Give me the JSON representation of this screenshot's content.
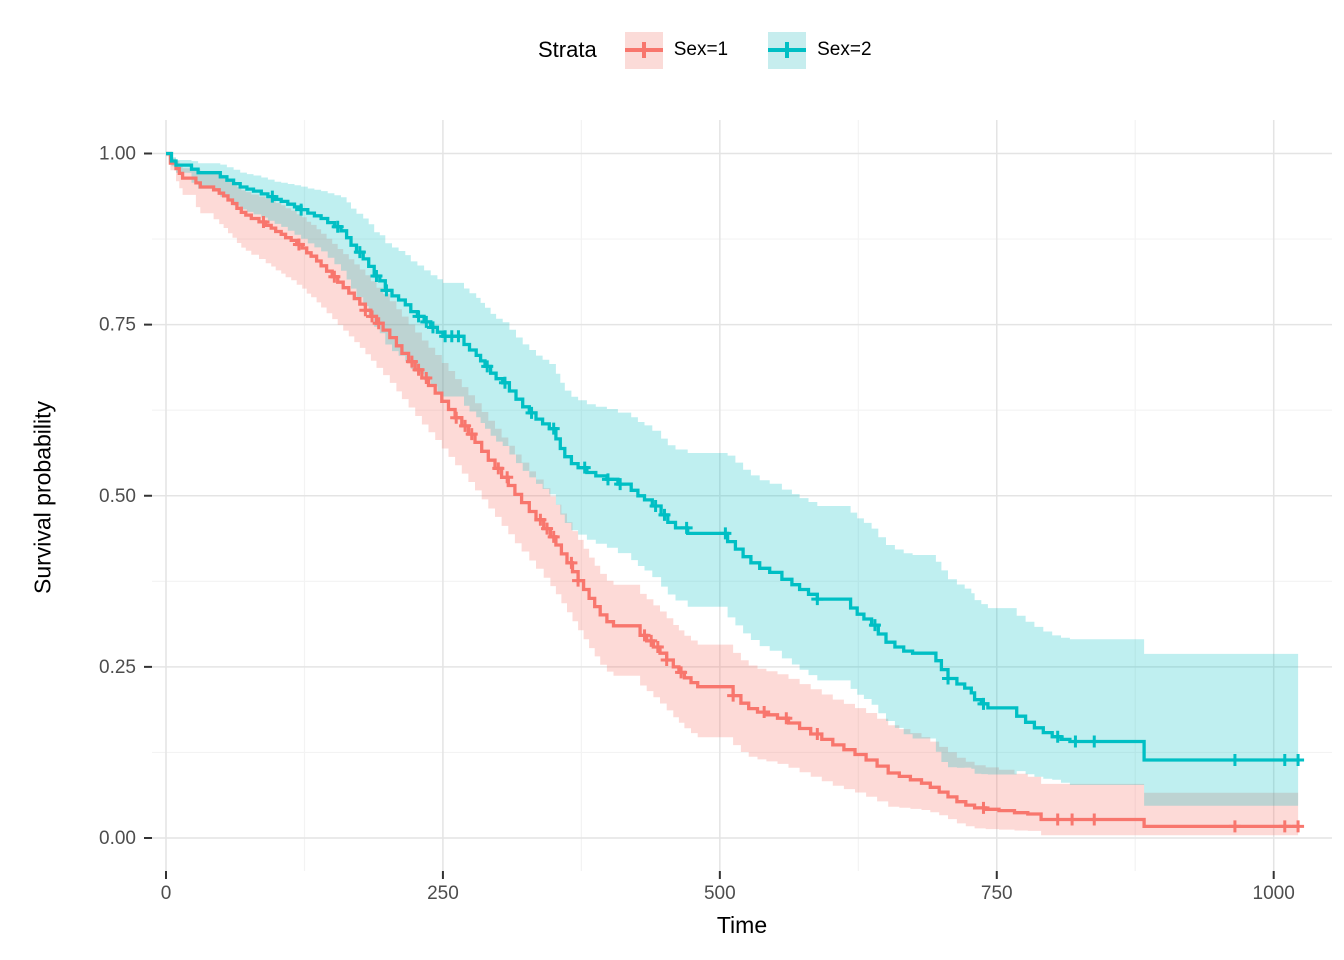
{
  "figure": {
    "background": "#ffffff"
  },
  "legend": {
    "title": "Strata",
    "items": [
      {
        "label": "Sex=1",
        "line_color": "#F8766D",
        "key_fill": "#FBDBD8"
      },
      {
        "label": "Sex=2",
        "line_color": "#00BFC4",
        "key_fill": "#C6EDEE"
      }
    ]
  },
  "axes": {
    "x_label": "Time",
    "y_label": "Survival probability",
    "x_tick_labels": [
      "0",
      "250",
      "500",
      "750",
      "1000"
    ],
    "y_tick_labels": [
      "0.00",
      "0.25",
      "0.50",
      "0.75",
      "1.00"
    ],
    "tick_text_color": "#4D4D4D",
    "tick_mark_color": "#333333",
    "grid_major": "#E4E4E4",
    "grid_minor": "#F3F3F3"
  },
  "chart_data": {
    "type": "line",
    "subtype": "kaplan-meier-step",
    "legend_title": "Strata",
    "xlabel": "Time",
    "ylabel": "Survival probability",
    "xlim": [
      0,
      1053
    ],
    "ylim": [
      0,
      1.05
    ],
    "grid": true,
    "legend_position": "top",
    "x_major": [
      0,
      250,
      500,
      750,
      1000
    ],
    "x_minor": [
      125,
      375,
      625,
      875
    ],
    "y_major": [
      0,
      0.25,
      0.5,
      0.75,
      1.0
    ],
    "y_minor": [
      0.125,
      0.375,
      0.625,
      0.875
    ],
    "end_time": 1022,
    "series": [
      {
        "name": "Sex=1",
        "color": "#F8766D",
        "fill": "rgba(248,118,109,0.27)",
        "steps": [
          [
            0,
            1.0
          ],
          [
            4,
            0.986
          ],
          [
            9,
            0.978
          ],
          [
            12,
            0.971
          ],
          [
            15,
            0.964
          ],
          [
            27,
            0.957
          ],
          [
            31,
            0.951
          ],
          [
            43,
            0.947
          ],
          [
            48,
            0.942
          ],
          [
            52,
            0.938
          ],
          [
            56,
            0.932
          ],
          [
            60,
            0.927
          ],
          [
            64,
            0.92
          ],
          [
            68,
            0.914
          ],
          [
            72,
            0.91
          ],
          [
            77,
            0.905
          ],
          [
            84,
            0.9
          ],
          [
            90,
            0.895
          ],
          [
            95,
            0.891
          ],
          [
            99,
            0.886
          ],
          [
            104,
            0.882
          ],
          [
            108,
            0.877
          ],
          [
            113,
            0.873
          ],
          [
            118,
            0.867
          ],
          [
            123,
            0.862
          ],
          [
            127,
            0.855
          ],
          [
            131,
            0.85
          ],
          [
            136,
            0.843
          ],
          [
            140,
            0.836
          ],
          [
            145,
            0.828
          ],
          [
            150,
            0.82
          ],
          [
            155,
            0.812
          ],
          [
            160,
            0.804
          ],
          [
            165,
            0.796
          ],
          [
            170,
            0.788
          ],
          [
            175,
            0.78
          ],
          [
            180,
            0.771
          ],
          [
            185,
            0.762
          ],
          [
            190,
            0.752
          ],
          [
            196,
            0.742
          ],
          [
            202,
            0.731
          ],
          [
            208,
            0.719
          ],
          [
            213,
            0.708
          ],
          [
            219,
            0.696
          ],
          [
            225,
            0.684
          ],
          [
            231,
            0.672
          ],
          [
            237,
            0.661
          ],
          [
            243,
            0.65
          ],
          [
            249,
            0.638
          ],
          [
            255,
            0.626
          ],
          [
            261,
            0.614
          ],
          [
            267,
            0.602
          ],
          [
            273,
            0.59
          ],
          [
            279,
            0.578
          ],
          [
            285,
            0.565
          ],
          [
            291,
            0.552
          ],
          [
            297,
            0.54
          ],
          [
            303,
            0.527
          ],
          [
            309,
            0.515
          ],
          [
            315,
            0.502
          ],
          [
            321,
            0.49
          ],
          [
            328,
            0.477
          ],
          [
            334,
            0.465
          ],
          [
            341,
            0.452
          ],
          [
            347,
            0.44
          ],
          [
            352,
            0.428
          ],
          [
            357,
            0.415
          ],
          [
            362,
            0.402
          ],
          [
            367,
            0.389
          ],
          [
            372,
            0.376
          ],
          [
            377,
            0.363
          ],
          [
            382,
            0.35
          ],
          [
            387,
            0.338
          ],
          [
            392,
            0.326
          ],
          [
            398,
            0.316
          ],
          [
            404,
            0.31
          ],
          [
            428,
            0.296
          ],
          [
            434,
            0.288
          ],
          [
            440,
            0.279
          ],
          [
            446,
            0.27
          ],
          [
            452,
            0.26
          ],
          [
            458,
            0.25
          ],
          [
            463,
            0.242
          ],
          [
            468,
            0.234
          ],
          [
            474,
            0.227
          ],
          [
            480,
            0.221
          ],
          [
            512,
            0.208
          ],
          [
            519,
            0.197
          ],
          [
            526,
            0.189
          ],
          [
            534,
            0.184
          ],
          [
            542,
            0.18
          ],
          [
            552,
            0.175
          ],
          [
            562,
            0.168
          ],
          [
            572,
            0.16
          ],
          [
            582,
            0.152
          ],
          [
            592,
            0.144
          ],
          [
            602,
            0.136
          ],
          [
            612,
            0.129
          ],
          [
            622,
            0.122
          ],
          [
            632,
            0.114
          ],
          [
            642,
            0.105
          ],
          [
            652,
            0.095
          ],
          [
            662,
            0.09
          ],
          [
            672,
            0.085
          ],
          [
            682,
            0.08
          ],
          [
            690,
            0.074
          ],
          [
            698,
            0.067
          ],
          [
            706,
            0.06
          ],
          [
            714,
            0.053
          ],
          [
            722,
            0.048
          ],
          [
            730,
            0.044
          ],
          [
            740,
            0.042
          ],
          [
            752,
            0.04
          ],
          [
            766,
            0.037
          ],
          [
            778,
            0.035
          ],
          [
            790,
            0.027
          ],
          [
            883,
            0.017
          ]
        ],
        "censor_times": [
          88,
          120,
          152,
          180,
          186,
          192,
          222,
          228,
          235,
          262,
          270,
          276,
          300,
          308,
          338,
          344,
          350,
          366,
          372,
          432,
          438,
          444,
          452,
          465,
          512,
          540,
          560,
          588,
          738,
          805,
          818,
          838,
          965,
          1010,
          1022
        ],
        "ci_width": [
          [
            0,
            0.004,
            0.004
          ],
          [
            10,
            0.012,
            0.02
          ],
          [
            30,
            0.022,
            0.038
          ],
          [
            60,
            0.03,
            0.05
          ],
          [
            100,
            0.042,
            0.057
          ],
          [
            150,
            0.048,
            0.062
          ],
          [
            200,
            0.053,
            0.066
          ],
          [
            250,
            0.056,
            0.069
          ],
          [
            300,
            0.058,
            0.071
          ],
          [
            400,
            0.06,
            0.073
          ],
          [
            500,
            0.062,
            0.074
          ],
          [
            600,
            0.066,
            0.06
          ],
          [
            650,
            0.07,
            0.05
          ],
          [
            700,
            0.066,
            0.033
          ],
          [
            750,
            0.06,
            0.028
          ],
          [
            800,
            0.05,
            0.022
          ],
          [
            880,
            0.049,
            0.013
          ],
          [
            1022,
            0.049,
            0.013
          ]
        ]
      },
      {
        "name": "Sex=2",
        "color": "#00BFC4",
        "fill": "rgba(0,191,196,0.25)",
        "steps": [
          [
            0,
            1.0
          ],
          [
            5,
            0.989
          ],
          [
            9,
            0.983
          ],
          [
            23,
            0.977
          ],
          [
            29,
            0.972
          ],
          [
            49,
            0.966
          ],
          [
            55,
            0.961
          ],
          [
            61,
            0.956
          ],
          [
            67,
            0.951
          ],
          [
            73,
            0.948
          ],
          [
            79,
            0.945
          ],
          [
            86,
            0.941
          ],
          [
            92,
            0.937
          ],
          [
            98,
            0.933
          ],
          [
            104,
            0.93
          ],
          [
            110,
            0.926
          ],
          [
            116,
            0.922
          ],
          [
            122,
            0.918
          ],
          [
            128,
            0.913
          ],
          [
            134,
            0.909
          ],
          [
            140,
            0.905
          ],
          [
            146,
            0.899
          ],
          [
            152,
            0.893
          ],
          [
            158,
            0.887
          ],
          [
            163,
            0.877
          ],
          [
            167,
            0.866
          ],
          [
            172,
            0.856
          ],
          [
            178,
            0.846
          ],
          [
            183,
            0.835
          ],
          [
            188,
            0.821
          ],
          [
            193,
            0.814
          ],
          [
            198,
            0.8
          ],
          [
            204,
            0.792
          ],
          [
            210,
            0.786
          ],
          [
            216,
            0.779
          ],
          [
            221,
            0.769
          ],
          [
            227,
            0.762
          ],
          [
            233,
            0.754
          ],
          [
            239,
            0.746
          ],
          [
            245,
            0.739
          ],
          [
            250,
            0.733
          ],
          [
            269,
            0.721
          ],
          [
            274,
            0.713
          ],
          [
            280,
            0.705
          ],
          [
            284,
            0.697
          ],
          [
            288,
            0.689
          ],
          [
            293,
            0.679
          ],
          [
            298,
            0.671
          ],
          [
            304,
            0.665
          ],
          [
            310,
            0.653
          ],
          [
            316,
            0.641
          ],
          [
            322,
            0.63
          ],
          [
            328,
            0.621
          ],
          [
            334,
            0.612
          ],
          [
            340,
            0.605
          ],
          [
            346,
            0.598
          ],
          [
            352,
            0.583
          ],
          [
            356,
            0.569
          ],
          [
            360,
            0.557
          ],
          [
            366,
            0.547
          ],
          [
            372,
            0.541
          ],
          [
            380,
            0.534
          ],
          [
            388,
            0.529
          ],
          [
            398,
            0.524
          ],
          [
            408,
            0.517
          ],
          [
            420,
            0.508
          ],
          [
            426,
            0.5
          ],
          [
            432,
            0.494
          ],
          [
            439,
            0.485
          ],
          [
            447,
            0.472
          ],
          [
            453,
            0.461
          ],
          [
            460,
            0.453
          ],
          [
            471,
            0.445
          ],
          [
            507,
            0.433
          ],
          [
            514,
            0.422
          ],
          [
            521,
            0.411
          ],
          [
            528,
            0.402
          ],
          [
            536,
            0.394
          ],
          [
            545,
            0.388
          ],
          [
            556,
            0.378
          ],
          [
            565,
            0.37
          ],
          [
            572,
            0.363
          ],
          [
            580,
            0.356
          ],
          [
            588,
            0.349
          ],
          [
            618,
            0.336
          ],
          [
            624,
            0.327
          ],
          [
            630,
            0.32
          ],
          [
            637,
            0.311
          ],
          [
            643,
            0.298
          ],
          [
            650,
            0.286
          ],
          [
            658,
            0.279
          ],
          [
            666,
            0.273
          ],
          [
            674,
            0.27
          ],
          [
            695,
            0.259
          ],
          [
            700,
            0.246
          ],
          [
            706,
            0.233
          ],
          [
            714,
            0.225
          ],
          [
            721,
            0.219
          ],
          [
            727,
            0.212
          ],
          [
            730,
            0.202
          ],
          [
            736,
            0.196
          ],
          [
            742,
            0.19
          ],
          [
            768,
            0.178
          ],
          [
            776,
            0.169
          ],
          [
            784,
            0.161
          ],
          [
            792,
            0.154
          ],
          [
            800,
            0.148
          ],
          [
            808,
            0.144
          ],
          [
            816,
            0.141
          ],
          [
            883,
            0.114
          ]
        ],
        "censor_times": [
          96,
          122,
          155,
          175,
          190,
          199,
          228,
          235,
          241,
          252,
          258,
          264,
          290,
          306,
          330,
          350,
          378,
          399,
          410,
          442,
          450,
          470,
          505,
          588,
          640,
          706,
          738,
          805,
          821,
          838,
          965,
          1010,
          1022
        ],
        "ci_width": [
          [
            0,
            0.003,
            0.003
          ],
          [
            10,
            0.008,
            0.012
          ],
          [
            30,
            0.014,
            0.024
          ],
          [
            60,
            0.02,
            0.032
          ],
          [
            100,
            0.026,
            0.036
          ],
          [
            140,
            0.04,
            0.048
          ],
          [
            170,
            0.055,
            0.065
          ],
          [
            200,
            0.07,
            0.08
          ],
          [
            250,
            0.078,
            0.088
          ],
          [
            300,
            0.088,
            0.092
          ],
          [
            350,
            0.095,
            0.096
          ],
          [
            400,
            0.103,
            0.1
          ],
          [
            450,
            0.112,
            0.105
          ],
          [
            500,
            0.125,
            0.11
          ],
          [
            550,
            0.13,
            0.115
          ],
          [
            600,
            0.138,
            0.12
          ],
          [
            650,
            0.142,
            0.115
          ],
          [
            700,
            0.145,
            0.135
          ],
          [
            750,
            0.146,
            0.09
          ],
          [
            800,
            0.148,
            0.063
          ],
          [
            850,
            0.152,
            0.065
          ],
          [
            883,
            0.155,
            0.067
          ],
          [
            1022,
            0.155,
            0.067
          ]
        ]
      }
    ]
  }
}
